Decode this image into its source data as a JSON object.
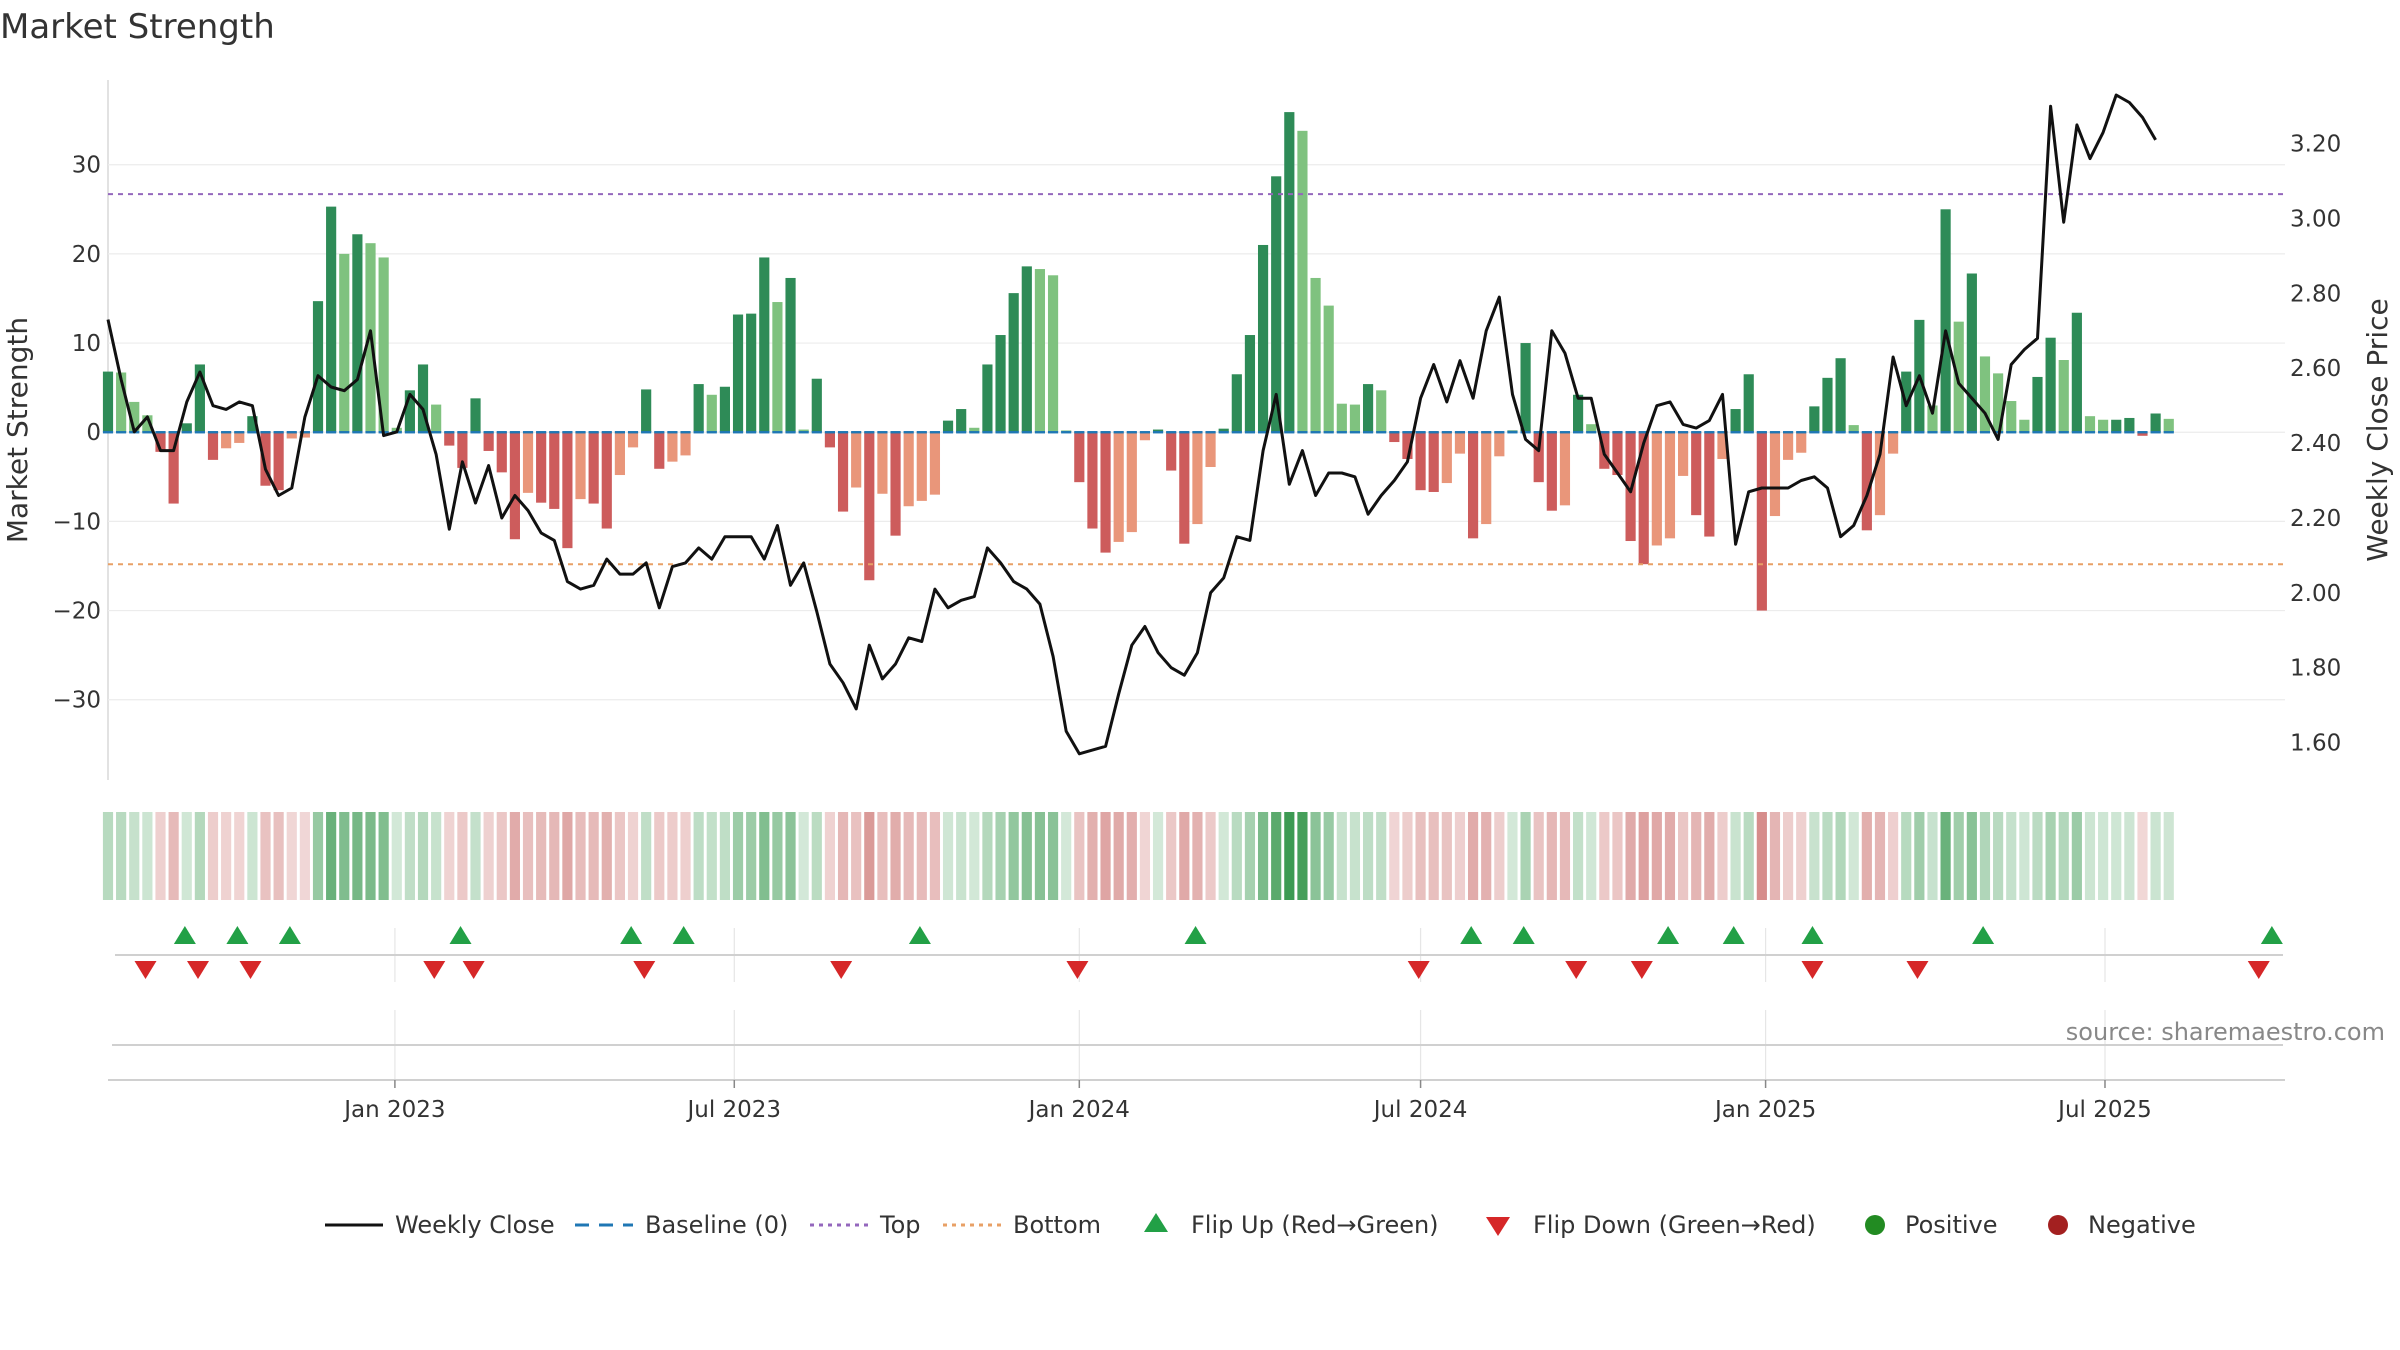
{
  "chart_data": {
    "type": "bar+line",
    "title": "Market Strength",
    "ylabel_left": "Market Strength",
    "ylabel_right": "Weekly Close Price",
    "ylim_left": [
      -39,
      39.5
    ],
    "ylim_right": [
      1.5,
      3.37
    ],
    "yticks_left": [
      30,
      20,
      10,
      0,
      -10,
      -20,
      -30
    ],
    "ytick_labels_left": [
      "30",
      "20",
      "10",
      "0",
      "−10",
      "−20",
      "−30"
    ],
    "yticks_right": [
      3.2,
      3.0,
      2.8,
      2.6,
      2.4,
      2.2,
      2.0,
      1.8,
      1.6
    ],
    "ytick_labels_right": [
      "3.20",
      "3.00",
      "2.80",
      "2.60",
      "2.40",
      "2.20",
      "2.00",
      "1.80",
      "1.60"
    ],
    "x_start": "2022-08-01",
    "x_end": "2025-10-05",
    "xticks": [
      {
        "date": "2023-01-01",
        "label": "Jan 2023"
      },
      {
        "date": "2023-07-01",
        "label": "Jul 2023"
      },
      {
        "date": "2024-01-01",
        "label": "Jan 2024"
      },
      {
        "date": "2024-07-01",
        "label": "Jul 2024"
      },
      {
        "date": "2025-01-01",
        "label": "Jan 2025"
      },
      {
        "date": "2025-07-01",
        "label": "Jul 2025"
      }
    ],
    "top_threshold": 26.7,
    "bottom_threshold": -14.8,
    "baseline": 0,
    "strength_start_date": "2022-08-01",
    "strength": [
      6.8,
      6.7,
      3.4,
      1.9,
      -2.2,
      -8.0,
      1.0,
      7.6,
      -3.1,
      -1.8,
      -1.2,
      1.8,
      -6.0,
      -6.5,
      -0.7,
      -0.6,
      14.7,
      25.3,
      20.0,
      22.2,
      21.2,
      19.6,
      0.5,
      4.7,
      7.6,
      3.1,
      -1.5,
      -4.0,
      3.8,
      -2.1,
      -4.5,
      -12.0,
      -6.8,
      -7.9,
      -8.6,
      -13.0,
      -7.5,
      -8.0,
      -10.8,
      -4.8,
      -1.7,
      4.8,
      -4.1,
      -3.3,
      -2.6,
      5.4,
      4.2,
      5.1,
      13.2,
      13.3,
      19.6,
      14.6,
      17.3,
      0.3,
      6.0,
      -1.7,
      -8.9,
      -6.2,
      -16.6,
      -6.9,
      -11.6,
      -8.3,
      -7.7,
      -7.0,
      1.3,
      2.6,
      0.5,
      7.6,
      10.9,
      15.6,
      18.6,
      18.3,
      17.6,
      0.2,
      -5.6,
      -10.8,
      -13.5,
      -12.3,
      -11.2,
      -0.9,
      0.3,
      -4.3,
      -12.5,
      -10.3,
      -3.9,
      0.4,
      6.5,
      10.9,
      21.0,
      28.7,
      35.9,
      33.8,
      17.3,
      14.2,
      3.2,
      3.1,
      5.4,
      4.7,
      -1.1,
      -3.0,
      -6.5,
      -6.7,
      -5.7,
      -2.4,
      -11.9,
      -10.3,
      -2.7,
      0.2,
      10.0,
      -5.6,
      -8.8,
      -8.2,
      4.2,
      0.9,
      -4.1,
      -4.8,
      -12.2,
      -14.8,
      -12.7,
      -11.9,
      -4.9,
      -9.3,
      -11.7,
      -3.0,
      2.6,
      6.5,
      -20.0,
      -9.4,
      -3.1,
      -2.3,
      2.9,
      6.1,
      8.3,
      0.8,
      -11.0,
      -9.3,
      -2.4,
      6.8,
      12.6,
      3.0,
      25.0,
      12.4,
      17.8,
      8.5,
      6.6,
      3.5,
      1.4,
      6.2,
      10.6,
      8.1,
      13.4,
      1.8,
      1.4,
      1.4,
      1.6,
      -0.4,
      2.1,
      1.5
    ],
    "price_start_date": "2022-08-01",
    "price": [
      2.73,
      2.57,
      2.43,
      2.47,
      2.38,
      2.38,
      2.51,
      2.59,
      2.5,
      2.49,
      2.51,
      2.5,
      2.33,
      2.26,
      2.28,
      2.47,
      2.58,
      2.55,
      2.54,
      2.57,
      2.7,
      2.42,
      2.43,
      2.53,
      2.49,
      2.37,
      2.17,
      2.35,
      2.24,
      2.34,
      2.2,
      2.26,
      2.22,
      2.16,
      2.14,
      2.03,
      2.01,
      2.02,
      2.09,
      2.05,
      2.05,
      2.08,
      1.96,
      2.07,
      2.08,
      2.12,
      2.09,
      2.15,
      2.15,
      2.15,
      2.09,
      2.18,
      2.02,
      2.08,
      1.95,
      1.81,
      1.76,
      1.69,
      1.86,
      1.77,
      1.81,
      1.88,
      1.87,
      2.01,
      1.96,
      1.98,
      1.99,
      2.12,
      2.08,
      2.03,
      2.01,
      1.97,
      1.83,
      1.63,
      1.57,
      1.58,
      1.59,
      1.73,
      1.86,
      1.91,
      1.84,
      1.8,
      1.78,
      1.84,
      2.0,
      2.04,
      2.15,
      2.14,
      2.38,
      2.53,
      2.29,
      2.38,
      2.26,
      2.32,
      2.32,
      2.31,
      2.21,
      2.26,
      2.3,
      2.35,
      2.52,
      2.61,
      2.51,
      2.62,
      2.52,
      2.7,
      2.79,
      2.53,
      2.41,
      2.38,
      2.7,
      2.64,
      2.52,
      2.52,
      2.37,
      2.32,
      2.27,
      2.4,
      2.5,
      2.51,
      2.45,
      2.44,
      2.46,
      2.53,
      2.13,
      2.27,
      2.28,
      2.28,
      2.28,
      2.3,
      2.31,
      2.28,
      2.15,
      2.18,
      2.26,
      2.37,
      2.63,
      2.5,
      2.58,
      2.48,
      2.7,
      2.56,
      2.52,
      2.48,
      2.41,
      2.61,
      2.65,
      2.68,
      3.3,
      2.99,
      3.25,
      3.16,
      3.23,
      3.33,
      3.31,
      3.27,
      3.21
    ],
    "flips_up": [
      "2022-09-11",
      "2022-10-09",
      "2022-11-06",
      "2023-02-05",
      "2023-05-07",
      "2023-06-04",
      "2023-10-08",
      "2024-03-03",
      "2024-07-28",
      "2024-08-25",
      "2024-11-10",
      "2024-12-15",
      "2025-01-26",
      "2025-04-27",
      "2025-09-28"
    ],
    "flips_down": [
      "2022-08-21",
      "2022-09-18",
      "2022-10-16",
      "2023-01-22",
      "2023-02-12",
      "2023-05-14",
      "2023-08-27",
      "2023-12-31",
      "2024-06-30",
      "2024-09-22",
      "2024-10-27",
      "2025-01-26",
      "2025-03-23",
      "2025-09-21"
    ],
    "legend": [
      {
        "label": "Weekly Close",
        "kind": "line",
        "color": "#111111"
      },
      {
        "label": "Baseline (0)",
        "kind": "dash",
        "color": "#1f77b4"
      },
      {
        "label": "Top",
        "kind": "dot",
        "color": "#9467bd"
      },
      {
        "label": "Bottom",
        "kind": "dot",
        "color": "#e8a066"
      },
      {
        "label": "Flip Up (Red→Green)",
        "kind": "tri-up",
        "color": "#22a046"
      },
      {
        "label": "Flip Down (Green→Red)",
        "kind": "tri-down",
        "color": "#d62728"
      },
      {
        "label": "Positive",
        "kind": "dot-marker",
        "color": "#228b22"
      },
      {
        "label": "Negative",
        "kind": "dot-marker",
        "color": "#a32020"
      }
    ],
    "source": "source: sharemaestro.com",
    "colors": {
      "strong_green": "#2e8b57",
      "light_green": "#7fc27f",
      "strong_red": "#cd5c5c",
      "light_red": "#e9967a",
      "price_line": "#111111"
    }
  }
}
